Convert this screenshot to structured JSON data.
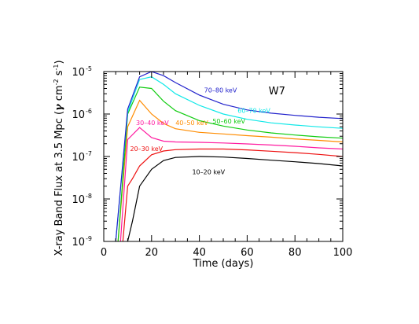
{
  "chart_data": {
    "type": "line",
    "title": "",
    "xlabel": "Time (days)",
    "ylabel_parts": {
      "pre": "X-ray Band Flux at 3.5 Mpc (",
      "gamma": "γ",
      "cm": " cm",
      "cm_exp": "-2",
      "s": " s",
      "s_exp": "-1",
      "post": ")"
    },
    "xlim": [
      0,
      100
    ],
    "ylim": [
      1e-09,
      1e-05
    ],
    "yscale": "log",
    "x_ticks": [
      0,
      20,
      40,
      60,
      80,
      100
    ],
    "x_tick_labels": [
      "0",
      "20",
      "40",
      "60",
      "80",
      "100"
    ],
    "y_ticks": [
      {
        "value": 1e-09,
        "base": "10",
        "exp": "-9"
      },
      {
        "value": 1e-08,
        "base": "10",
        "exp": "-8"
      },
      {
        "value": 1e-07,
        "base": "10",
        "exp": "-7"
      },
      {
        "value": 1e-06,
        "base": "10",
        "exp": "-6"
      },
      {
        "value": 1e-05,
        "base": "10",
        "exp": "-5"
      }
    ],
    "annotation": "W7",
    "grid": false,
    "series": [
      {
        "name": "10–20 keV",
        "color": "#000000",
        "x": [
          10,
          12,
          15,
          20,
          25,
          30,
          40,
          50,
          60,
          70,
          80,
          90,
          100
        ],
        "y": [
          1e-09,
          3e-09,
          2e-08,
          5e-08,
          8e-08,
          9.5e-08,
          1e-07,
          9.7e-08,
          9e-08,
          8.2e-08,
          7.5e-08,
          6.8e-08,
          6e-08
        ],
        "label_x": 37,
        "label_y": 3.8e-08
      },
      {
        "name": "20–30 keV",
        "color": "#ee1010",
        "x": [
          8,
          10,
          12,
          15,
          20,
          25,
          30,
          40,
          50,
          60,
          70,
          80,
          90,
          100
        ],
        "y": [
          1e-09,
          2e-08,
          3e-08,
          6e-08,
          1.1e-07,
          1.35e-07,
          1.45e-07,
          1.5e-07,
          1.5e-07,
          1.43e-07,
          1.33e-07,
          1.23e-07,
          1.12e-07,
          1e-07
        ],
        "label_x": 11,
        "label_y": 1.35e-07
      },
      {
        "name": "30–40 keV",
        "color": "#ff1aa0",
        "x": [
          7,
          10,
          15,
          20,
          25,
          30,
          40,
          50,
          60,
          70,
          80,
          90,
          100
        ],
        "y": [
          1e-09,
          2.5e-07,
          4.8e-07,
          2.8e-07,
          2.3e-07,
          2.2e-07,
          2.15e-07,
          2.08e-07,
          1.98e-07,
          1.86e-07,
          1.74e-07,
          1.6e-07,
          1.5e-07
        ],
        "label_x": 13.5,
        "label_y": 5.5e-07
      },
      {
        "name": "40–50 keV",
        "color": "#ff8c00",
        "x": [
          6,
          10,
          15,
          20,
          25,
          30,
          40,
          50,
          60,
          70,
          80,
          90,
          100
        ],
        "y": [
          1e-09,
          5e-07,
          2.1e-06,
          1e-06,
          6e-07,
          4.5e-07,
          3.7e-07,
          3.4e-07,
          3.1e-07,
          2.85e-07,
          2.6e-07,
          2.4e-07,
          2.2e-07
        ],
        "label_x": 30,
        "label_y": 5.5e-07
      },
      {
        "name": "50–60 keV",
        "color": "#10cc10",
        "x": [
          6,
          10,
          15,
          20,
          25,
          30,
          40,
          50,
          60,
          70,
          80,
          90,
          100
        ],
        "y": [
          1e-09,
          1e-06,
          4.3e-06,
          4e-06,
          2e-06,
          1.2e-06,
          7e-07,
          5.2e-07,
          4.2e-07,
          3.6e-07,
          3.2e-07,
          2.9e-07,
          2.7e-07
        ],
        "label_x": 45.5,
        "label_y": 6e-07
      },
      {
        "name": "60–70 keV",
        "color": "#10e8e8",
        "x": [
          5,
          10,
          15,
          20,
          25,
          30,
          40,
          50,
          60,
          70,
          80,
          90,
          100
        ],
        "y": [
          1e-09,
          1.1e-06,
          6.5e-06,
          7.5e-06,
          5e-06,
          3e-06,
          1.6e-06,
          1e-06,
          7.5e-07,
          6.2e-07,
          5.5e-07,
          5e-07,
          4.6e-07
        ],
        "label_x": 56,
        "label_y": 1.07e-06
      },
      {
        "name": "70–80 keV",
        "color": "#2222cc",
        "x": [
          5,
          10,
          15,
          20,
          25,
          30,
          40,
          50,
          60,
          70,
          80,
          90,
          100
        ],
        "y": [
          1e-09,
          1.3e-06,
          7.5e-06,
          1e-05,
          8e-06,
          5.5e-06,
          2.8e-06,
          1.7e-06,
          1.25e-06,
          1.05e-06,
          9.3e-07,
          8.4e-07,
          7.8e-07
        ],
        "label_x": 42,
        "label_y": 3.2e-06
      }
    ]
  }
}
